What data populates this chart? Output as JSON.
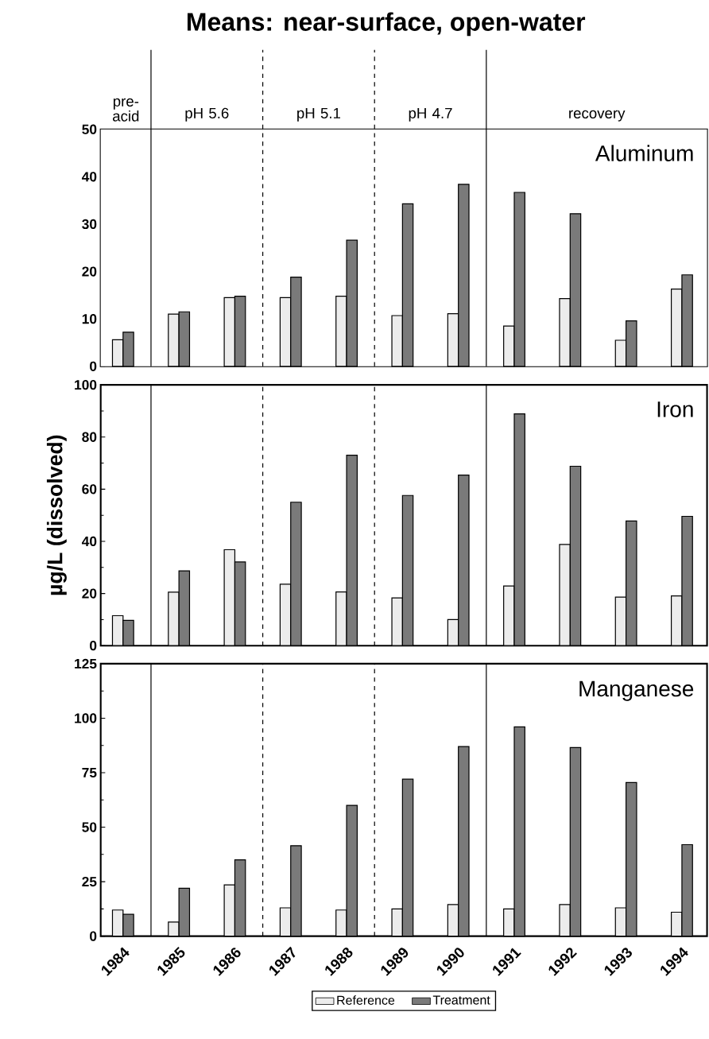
{
  "chart_data": [
    {
      "type": "bar",
      "title": "Means: near-surface, open-water",
      "x": [
        1984,
        1985,
        1986,
        1987,
        1988,
        1989,
        1990,
        1991,
        1992,
        1993,
        1994
      ],
      "xlim": [
        1983.6,
        1994.45
      ],
      "xticks": [
        1984,
        1985,
        1986,
        1987,
        1988,
        1989,
        1990,
        1991,
        1992,
        1993,
        1994
      ],
      "ylim": [
        0,
        50
      ],
      "yticks": [
        0,
        10,
        20,
        30,
        40,
        50
      ],
      "tick_labels": "y",
      "legend": false,
      "series": [
        {
          "color": "#ececec",
          "values": [
            5.6,
            11,
            14.5,
            14.5,
            14.8,
            10.7,
            11.1,
            8.5,
            14.3,
            5.5,
            16.3
          ]
        },
        {
          "color": "#7a7a7a",
          "values": [
            7.2,
            11.5,
            14.8,
            18.8,
            26.6,
            34.3,
            38.4,
            36.7,
            32.2,
            9.6,
            19.3
          ]
        }
      ],
      "annotations": [
        "Aluminum"
      ],
      "bands": [
        {
          "axis": "x",
          "from": 1983.6,
          "to": 1984.5,
          "label": "pre-acid",
          "color": "#ffffff"
        },
        {
          "axis": "x",
          "from": 1984.5,
          "to": 1986.5,
          "label": "pH 5.6",
          "color": "#ffffff"
        },
        {
          "axis": "x",
          "from": 1986.5,
          "to": 1988.5,
          "label": "pH 5.1",
          "color": "#ffffff"
        },
        {
          "axis": "x",
          "from": 1988.5,
          "to": 1990.5,
          "label": "pH 4.7",
          "color": "#ffffff"
        },
        {
          "axis": "x",
          "from": 1990.5,
          "to": 1994.45,
          "label": "recovery",
          "color": "#ffffff"
        }
      ],
      "ref_lines": [
        {
          "axis": "x",
          "value": 1984.5,
          "line_style": "solid"
        },
        {
          "axis": "x",
          "value": 1986.5,
          "line_style": "dashed"
        },
        {
          "axis": "x",
          "value": 1988.5,
          "line_style": "dashed"
        },
        {
          "axis": "x",
          "value": 1990.5,
          "line_style": "solid"
        }
      ]
    },
    {
      "type": "bar",
      "ylabel": "µg/L (dissolved)",
      "x": [
        1984,
        1985,
        1986,
        1987,
        1988,
        1989,
        1990,
        1991,
        1992,
        1993,
        1994
      ],
      "xlim": [
        1983.6,
        1994.45
      ],
      "xticks": [
        1984,
        1985,
        1986,
        1987,
        1988,
        1989,
        1990,
        1991,
        1992,
        1993,
        1994
      ],
      "ylim": [
        0,
        100
      ],
      "yticks": [
        0,
        20,
        40,
        60,
        80,
        100
      ],
      "tick_labels": "y",
      "legend": false,
      "series": [
        {
          "color": "#ececec",
          "values": [
            11.5,
            20.5,
            36.8,
            23.6,
            20.6,
            18.3,
            10,
            22.9,
            38.8,
            18.6,
            19.1
          ]
        },
        {
          "color": "#7a7a7a",
          "values": [
            9.7,
            28.7,
            32.1,
            55,
            73,
            57.6,
            65.4,
            88.9,
            68.8,
            47.8,
            49.6
          ]
        }
      ],
      "annotations": [
        "Iron"
      ],
      "ref_lines": [
        {
          "axis": "x",
          "value": 1984.5,
          "line_style": "solid"
        },
        {
          "axis": "x",
          "value": 1986.5,
          "line_style": "dashed"
        },
        {
          "axis": "x",
          "value": 1988.5,
          "line_style": "dashed"
        },
        {
          "axis": "x",
          "value": 1990.5,
          "line_style": "solid"
        }
      ]
    },
    {
      "type": "bar",
      "x": [
        1984,
        1985,
        1986,
        1987,
        1988,
        1989,
        1990,
        1991,
        1992,
        1993,
        1994
      ],
      "xlim": [
        1983.6,
        1994.45
      ],
      "xticks": [
        1984,
        1985,
        1986,
        1987,
        1988,
        1989,
        1990,
        1991,
        1992,
        1993,
        1994
      ],
      "ylim": [
        0,
        125
      ],
      "yticks": [
        0,
        25,
        50,
        75,
        100,
        125
      ],
      "legend": "bottom",
      "series": [
        {
          "name": "Reference",
          "color": "#ececec",
          "values": [
            12,
            6.5,
            23.5,
            13,
            12,
            12.5,
            14.5,
            12.5,
            14.5,
            13,
            11
          ]
        },
        {
          "name": "Treatment",
          "color": "#7a7a7a",
          "values": [
            10,
            22,
            35,
            41.5,
            60,
            72,
            87,
            96,
            86.5,
            70.5,
            42
          ]
        }
      ],
      "annotations": [
        "Manganese"
      ],
      "ref_lines": [
        {
          "axis": "x",
          "value": 1984.5,
          "line_style": "solid"
        },
        {
          "axis": "x",
          "value": 1986.5,
          "line_style": "dashed"
        },
        {
          "axis": "x",
          "value": 1988.5,
          "line_style": "dashed"
        },
        {
          "axis": "x",
          "value": 1990.5,
          "line_style": "solid"
        }
      ]
    }
  ]
}
